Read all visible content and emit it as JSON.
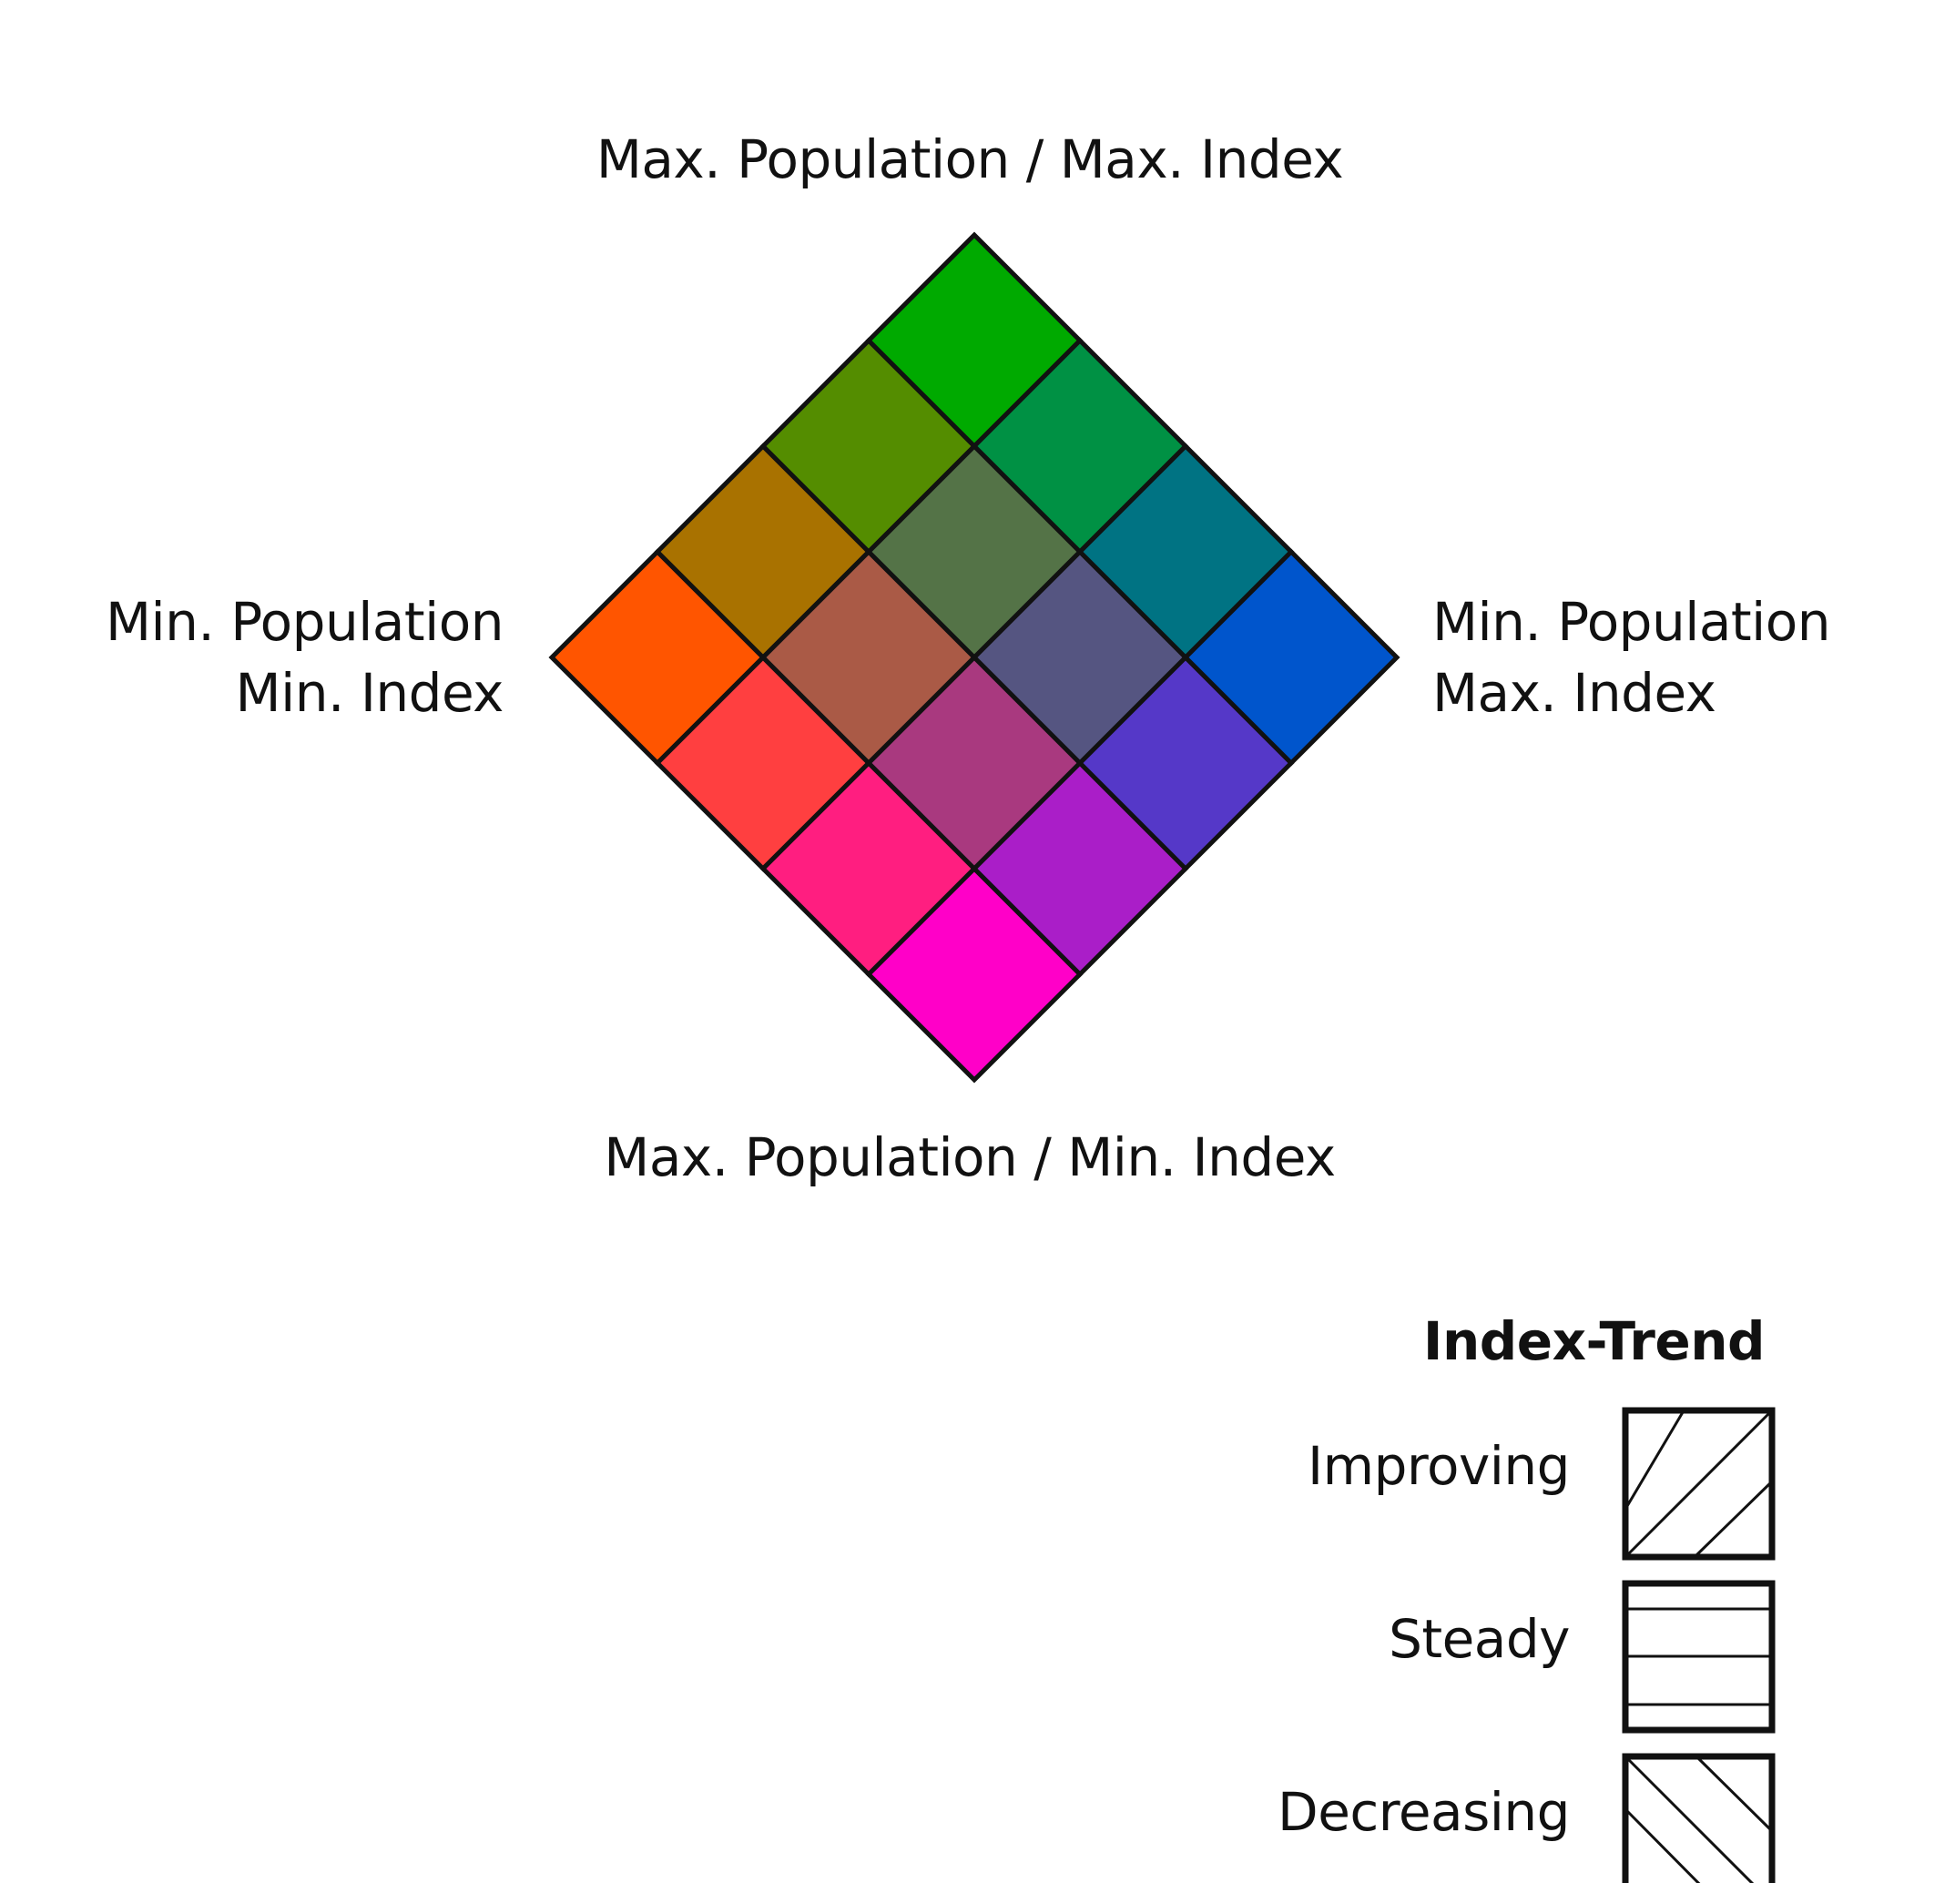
{
  "labels": {
    "top": "Max. Population / Max. Index",
    "bottom": "Max. Population / Min. Index",
    "left_line1": "Min. Population",
    "left_line2": "Min. Index",
    "right_line1": "Min. Population",
    "right_line2": "Max. Index"
  },
  "grid": {
    "rows": [
      [
        "#ff5500",
        "#a97200",
        "#548d00",
        "#00aa00"
      ],
      [
        "#ff3f40",
        "#aa5a46",
        "#547347",
        "#009144"
      ],
      [
        "#ff1e80",
        "#a9397f",
        "#555581",
        "#007383"
      ],
      [
        "#ff00c8",
        "#aa1ec8",
        "#5538c8",
        "#0055cc"
      ]
    ]
  },
  "trend_legend": {
    "title": "Index-Trend",
    "items": [
      {
        "label": "Improving",
        "pattern": "diagonal-up"
      },
      {
        "label": "Steady",
        "pattern": "horizontal"
      },
      {
        "label": "Decreasing",
        "pattern": "diagonal-down"
      }
    ]
  }
}
